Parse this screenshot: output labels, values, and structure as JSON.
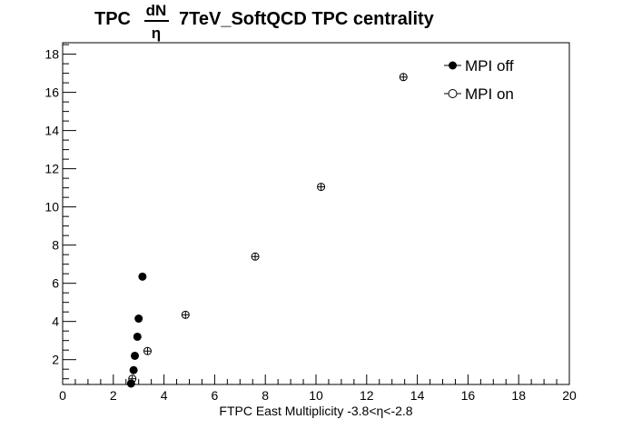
{
  "chart_data": {
    "type": "scatter",
    "title": {
      "prefix": "TPC",
      "frac_num": "dN",
      "frac_den": "η",
      "suffix": "7TeV_SoftQCD TPC centrality"
    },
    "xlabel": "FTPC East Multiplicity -3.8<η<-2.8",
    "ylabel": "",
    "xlim": [
      0,
      20
    ],
    "ylim": [
      0.7,
      18.6
    ],
    "x_ticks": [
      0,
      2,
      4,
      6,
      8,
      10,
      12,
      14,
      16,
      18,
      20
    ],
    "y_ticks": [
      2,
      4,
      6,
      8,
      10,
      12,
      14,
      16,
      18
    ],
    "grid": false,
    "legend_position": "top-right",
    "series": [
      {
        "name": "MPI off",
        "marker": "filled-circle",
        "color": "#000000",
        "points": [
          {
            "x": 2.7,
            "y": 0.75
          },
          {
            "x": 2.8,
            "y": 1.45
          },
          {
            "x": 2.85,
            "y": 2.2
          },
          {
            "x": 2.95,
            "y": 3.2
          },
          {
            "x": 3.0,
            "y": 4.15
          },
          {
            "x": 3.15,
            "y": 6.35
          }
        ]
      },
      {
        "name": "MPI on",
        "marker": "open-circle-cross",
        "color": "#000000",
        "points": [
          {
            "x": 2.75,
            "y": 1.0
          },
          {
            "x": 3.35,
            "y": 2.45
          },
          {
            "x": 4.85,
            "y": 4.35
          },
          {
            "x": 7.6,
            "y": 7.4
          },
          {
            "x": 10.2,
            "y": 11.05
          },
          {
            "x": 13.45,
            "y": 16.8
          }
        ]
      }
    ]
  }
}
